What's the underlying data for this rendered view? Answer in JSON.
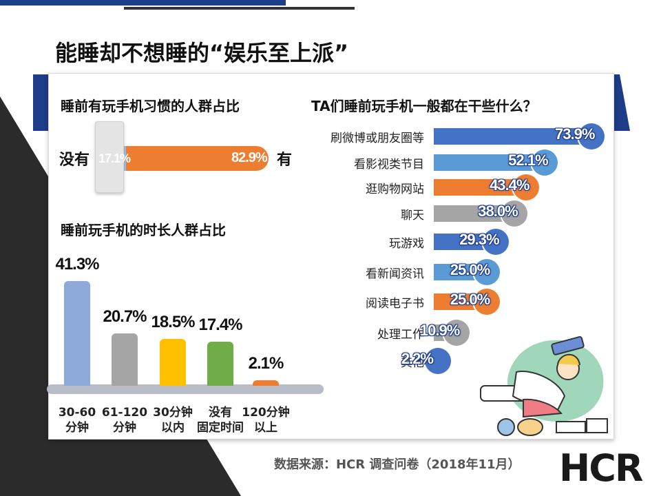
{
  "title": "能睡却不想睡的“娱乐至上派”",
  "source": "数据来源：HCR 调查问卷（2018年11月）",
  "logo_text": "HCR",
  "colors": {
    "dark_blue": "#3e68c8",
    "light_blue": "#5b9bd5",
    "orange": "#ed7d31",
    "gray": "#a5a5a5",
    "yellow": "#ffc000",
    "green": "#70ad47",
    "vbar_blue": "#8eaadb"
  },
  "chart_data": [
    {
      "type": "bar",
      "title": "睡前有玩手机习惯的人群占比",
      "categories": [
        "没有",
        "有"
      ],
      "values": [
        17.1,
        82.9
      ],
      "labels": [
        "17.1%",
        "82.9%"
      ]
    },
    {
      "type": "bar",
      "title": "睡前玩手机的时长人群占比",
      "categories": [
        "30-60\n分钟",
        "61-120\n分钟",
        "30分钟\n以内",
        "没有\n固定时间",
        "120分钟\n以上"
      ],
      "values": [
        41.3,
        20.7,
        18.5,
        17.4,
        2.1
      ],
      "labels": [
        "41.3%",
        "20.7%",
        "18.5%",
        "17.4%",
        "2.1%"
      ],
      "colors": [
        "#8eaadb",
        "#a5a5a5",
        "#ffc000",
        "#70ad47",
        "#ed7d31"
      ]
    },
    {
      "type": "bar",
      "title": "TA们睡前玩手机一般都在干些什么？",
      "categories": [
        "刷微博或朋友圈等",
        "看影视类节目",
        "逛购物网站",
        "聊天",
        "玩游戏",
        "看新闻资讯",
        "阅读电子书",
        "处理工作",
        "其他"
      ],
      "values": [
        73.9,
        52.1,
        43.4,
        38.0,
        29.3,
        25.0,
        25.0,
        10.9,
        2.2
      ],
      "labels": [
        "73.9%",
        "52.1%",
        "43.4%",
        "38.0%",
        "29.3%",
        "25.0%",
        "25.0%",
        "10.9%",
        "2.2%"
      ],
      "colors": [
        "#4472c4",
        "#5b9bd5",
        "#ed7d31",
        "#a5a5a5",
        "#4472c4",
        "#5b9bd5",
        "#ed7d31",
        "#a5a5a5",
        "#4472c4"
      ]
    }
  ]
}
